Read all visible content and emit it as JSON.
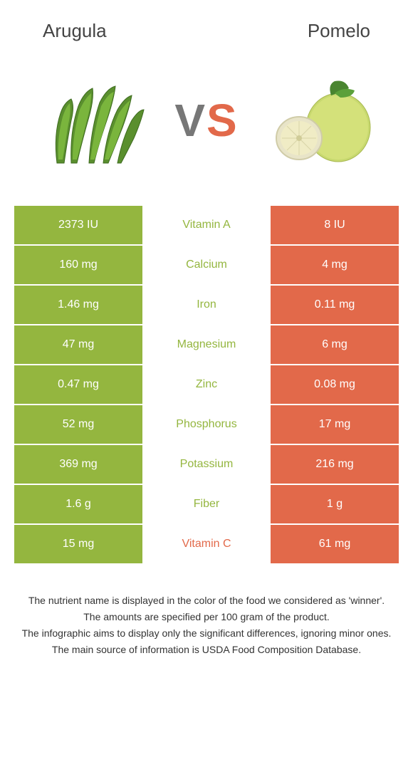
{
  "header": {
    "left_title": "Arugula",
    "right_title": "Pomelo"
  },
  "vs": {
    "v": "V",
    "s": "S"
  },
  "colors": {
    "left": "#94b63f",
    "right": "#e2694a",
    "mid_left_text": "#94b63f",
    "mid_right_text": "#e2694a"
  },
  "table": {
    "rows": [
      {
        "left": "2373 IU",
        "mid": "Vitamin A",
        "right": "8 IU",
        "winner": "left"
      },
      {
        "left": "160 mg",
        "mid": "Calcium",
        "right": "4 mg",
        "winner": "left"
      },
      {
        "left": "1.46 mg",
        "mid": "Iron",
        "right": "0.11 mg",
        "winner": "left"
      },
      {
        "left": "47 mg",
        "mid": "Magnesium",
        "right": "6 mg",
        "winner": "left"
      },
      {
        "left": "0.47 mg",
        "mid": "Zinc",
        "right": "0.08 mg",
        "winner": "left"
      },
      {
        "left": "52 mg",
        "mid": "Phosphorus",
        "right": "17 mg",
        "winner": "left"
      },
      {
        "left": "369 mg",
        "mid": "Potassium",
        "right": "216 mg",
        "winner": "left"
      },
      {
        "left": "1.6 g",
        "mid": "Fiber",
        "right": "1 g",
        "winner": "left"
      },
      {
        "left": "15 mg",
        "mid": "Vitamin C",
        "right": "61 mg",
        "winner": "right"
      }
    ]
  },
  "footer": {
    "line1": "The nutrient name is displayed in the color of the food we considered as 'winner'.",
    "line2": "The amounts are specified per 100 gram of the product.",
    "line3": "The infographic aims to display only the significant differences, ignoring minor ones.",
    "line4": "The main source of information is USDA Food Composition Database."
  }
}
